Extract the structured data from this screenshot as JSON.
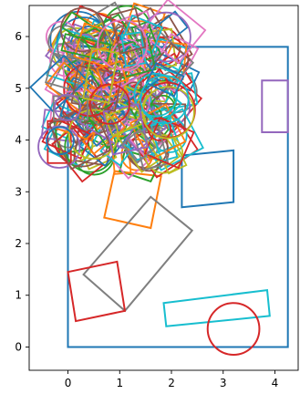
{
  "chart_data": {
    "type": "scatter",
    "title": "",
    "xlabel": "",
    "ylabel": "",
    "xlim": [
      -0.75,
      4.45
    ],
    "ylim": [
      -0.45,
      6.6
    ],
    "xticks": [
      0,
      1,
      2,
      3,
      4
    ],
    "yticks": [
      0,
      1,
      2,
      3,
      4,
      5,
      6
    ],
    "grid": false,
    "legend": "none",
    "shapes": [
      {
        "kind": "rect",
        "label": "large container rectangle",
        "color": "#1f77b4",
        "points": [
          [
            0,
            0
          ],
          [
            4.25,
            0
          ],
          [
            4.25,
            5.8
          ],
          [
            0,
            5.8
          ]
        ]
      },
      {
        "kind": "polygon",
        "label": "square right of blob",
        "color": "#1f77b4",
        "points": [
          [
            2.2,
            2.7
          ],
          [
            3.2,
            2.8
          ],
          [
            3.2,
            3.8
          ],
          [
            2.2,
            3.7
          ]
        ]
      },
      {
        "kind": "polygon",
        "label": "orange square",
        "color": "#ff7f0e",
        "points": [
          [
            1.8,
            3.3
          ],
          [
            1.6,
            2.3
          ],
          [
            0.7,
            2.5
          ],
          [
            0.9,
            3.4
          ]
        ]
      },
      {
        "kind": "polygon",
        "label": "green square under blob",
        "color": "#2ca02c",
        "points": [
          [
            1.0,
            3.4
          ],
          [
            1.1,
            3.8
          ],
          [
            1.8,
            3.6
          ],
          [
            1.6,
            3.2
          ]
        ]
      },
      {
        "kind": "polygon",
        "label": "grey tilted rectangle",
        "color": "#7f7f7f",
        "points": [
          [
            0.3,
            1.4
          ],
          [
            1.6,
            2.9
          ],
          [
            2.4,
            2.25
          ],
          [
            1.1,
            0.7
          ]
        ]
      },
      {
        "kind": "polygon",
        "label": "red quadrilateral",
        "color": "#d62728",
        "points": [
          [
            0,
            1.45
          ],
          [
            0.95,
            1.65
          ],
          [
            1.1,
            0.7
          ],
          [
            0.15,
            0.5
          ]
        ]
      },
      {
        "kind": "polygon",
        "label": "purple rectangle",
        "color": "#9467bd",
        "points": [
          [
            3.75,
            4.15
          ],
          [
            4.25,
            4.15
          ],
          [
            4.25,
            5.15
          ],
          [
            3.75,
            5.15
          ]
        ]
      },
      {
        "kind": "polygon",
        "label": "cyan tilted rectangle",
        "color": "#17becf",
        "points": [
          [
            1.9,
            0.4
          ],
          [
            3.9,
            0.6
          ],
          [
            3.85,
            1.1
          ],
          [
            1.85,
            0.85
          ]
        ]
      },
      {
        "kind": "circle",
        "label": "red circle",
        "color": "#d62728",
        "center": [
          3.2,
          0.35
        ],
        "radius": 0.5
      }
    ],
    "clutter": {
      "region": {
        "x": [
          -0.55,
          2.45
        ],
        "y": [
          3.35,
          6.55
        ]
      },
      "count": 200,
      "colors": [
        "#1f77b4",
        "#ff7f0e",
        "#2ca02c",
        "#d62728",
        "#9467bd",
        "#8c564b",
        "#e377c2",
        "#7f7f7f",
        "#bcbd22",
        "#17becf"
      ]
    }
  }
}
